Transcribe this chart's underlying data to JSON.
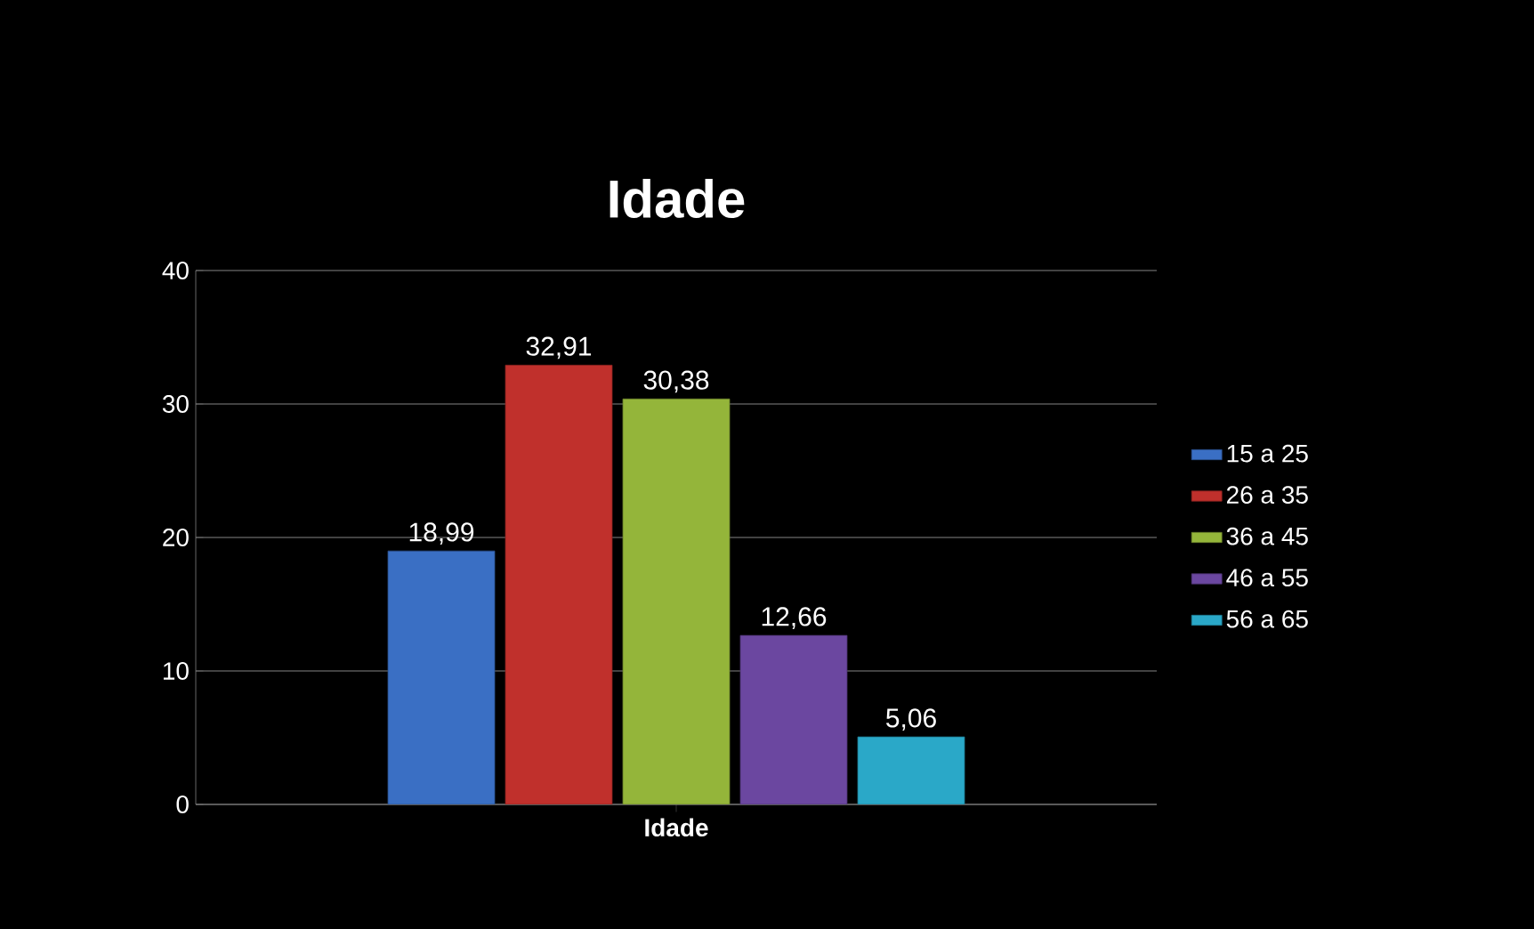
{
  "chart_data": {
    "type": "bar",
    "title": "Idade",
    "categories": [
      "Idade"
    ],
    "series": [
      {
        "name": "15 a 25",
        "color": "#3a6fc4",
        "values": [
          18.99
        ],
        "value_labels": [
          "18,99"
        ]
      },
      {
        "name": "26 a 35",
        "color": "#c0302c",
        "values": [
          32.91
        ],
        "value_labels": [
          "32,91"
        ]
      },
      {
        "name": "36 a 45",
        "color": "#94b53a",
        "values": [
          30.38
        ],
        "value_labels": [
          "30,38"
        ]
      },
      {
        "name": "46 a 55",
        "color": "#6b47a0",
        "values": [
          12.66
        ],
        "value_labels": [
          "12,66"
        ]
      },
      {
        "name": "56 a 65",
        "color": "#2aa8c8",
        "values": [
          5.06
        ],
        "value_labels": [
          "5,06"
        ]
      }
    ],
    "ylim": [
      0,
      40
    ],
    "yticks": [
      0,
      10,
      20,
      30,
      40
    ],
    "grid": "y",
    "legend": "right"
  }
}
